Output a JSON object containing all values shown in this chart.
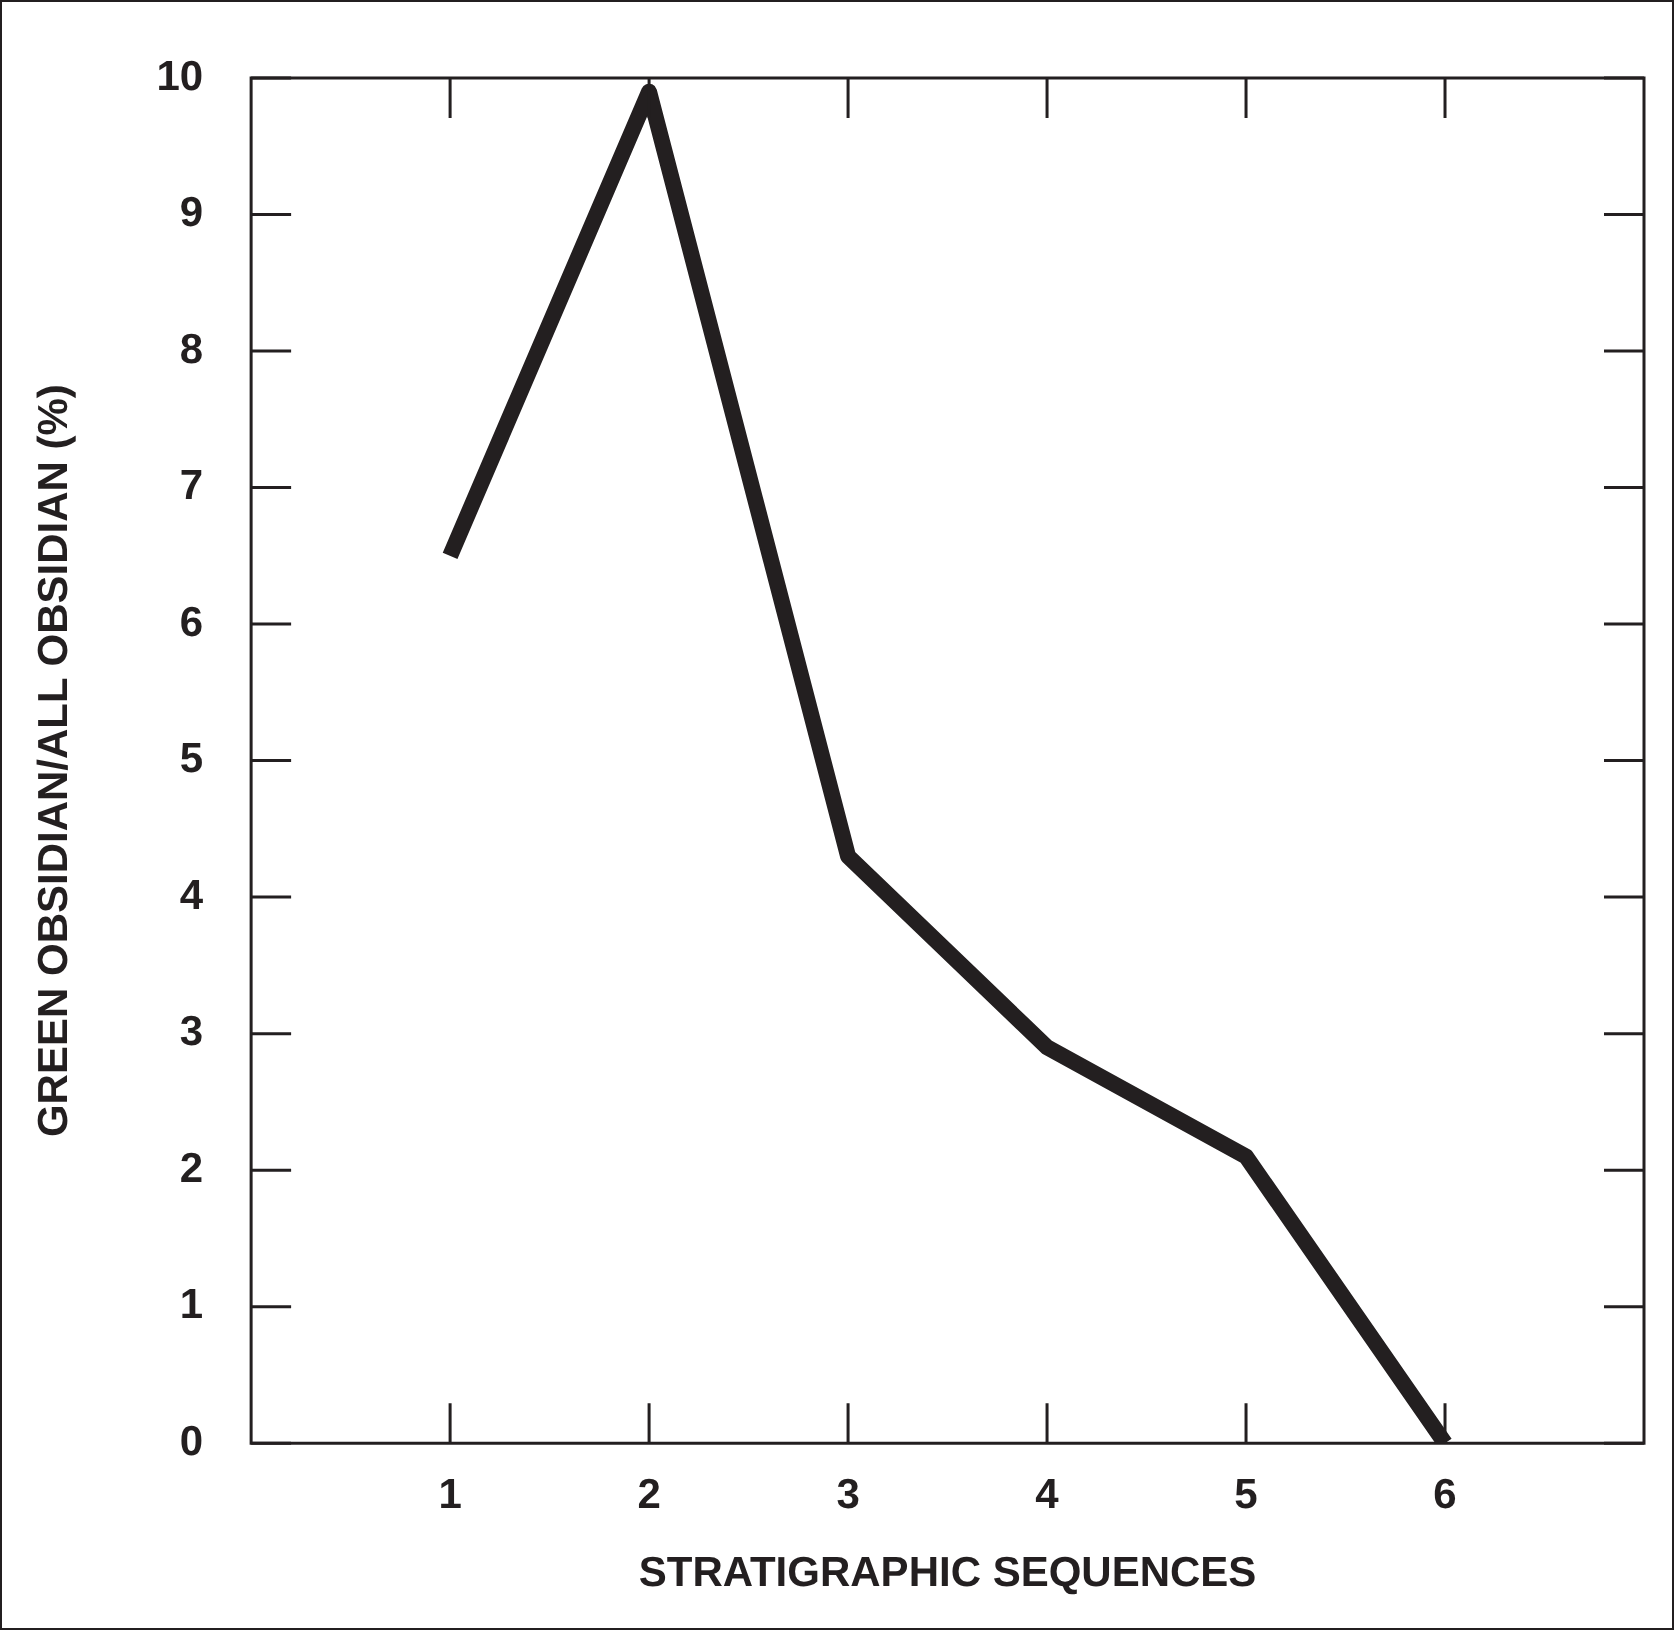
{
  "chart_data": {
    "type": "line",
    "xlabel": "STRATIGRAPHIC SEQUENCES",
    "ylabel": "GREEN OBSIDIAN/ALL OBSIDIAN (%)",
    "x": [
      1,
      2,
      3,
      4,
      5,
      6
    ],
    "series": [
      {
        "color": "#231f20",
        "values": [
          6.5,
          9.9,
          4.3,
          2.9,
          2.1,
          0
        ]
      }
    ],
    "xlim": [
      0,
      7
    ],
    "xticks": [
      1,
      2,
      3,
      4,
      5,
      6
    ],
    "ylim": [
      0,
      10
    ],
    "yticks": [
      0,
      1,
      2,
      3,
      4,
      5,
      6,
      7,
      8,
      9,
      10
    ],
    "grid": false,
    "legend": false,
    "marker": "none",
    "line_style": "solid"
  }
}
